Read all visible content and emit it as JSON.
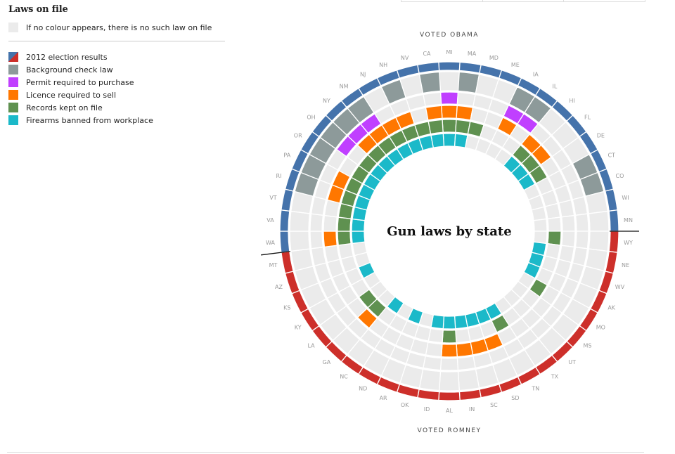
{
  "legend": {
    "title": "Laws on file",
    "no_law_note": "If no colour appears, there is no such law on file",
    "items": [
      {
        "label": "2012 election results",
        "color": "split"
      },
      {
        "label": "Background check law",
        "color": "#8d9a9a"
      },
      {
        "label": "Permit required to purchase",
        "color": "#c03fff"
      },
      {
        "label": "Licence required to sell",
        "color": "#ff7700"
      },
      {
        "label": "Records kept on file",
        "color": "#5f9150"
      },
      {
        "label": "Firearms banned from workplace",
        "color": "#1bb9c9"
      }
    ]
  },
  "colors": {
    "obama": "#4573ab",
    "romney": "#cd2f2a",
    "empty": "#ebebeb",
    "background_check": "#8d9a9a",
    "permit_to_purchase": "#c03fff",
    "licence_to_sell": "#ff7700",
    "records_kept": "#5f9150",
    "workplace_ban": "#1bb9c9"
  },
  "chart_data": {
    "type": "radial",
    "title": "Gun laws by state",
    "top_label": "VOTED OBAMA",
    "bottom_label": "VOTED ROMNEY",
    "rings": [
      "2012 election results",
      "Background check law",
      "Permit required to purchase",
      "Licence required to sell",
      "Records kept on file",
      "Firearms banned from workplace"
    ],
    "states": [
      {
        "name": "MI",
        "vote": "obama",
        "laws": {
          "permit": true,
          "licence": true,
          "records": true,
          "workplace": true
        }
      },
      {
        "name": "MA",
        "vote": "obama",
        "laws": {
          "background": true,
          "licence": true,
          "records": true,
          "workplace": true
        }
      },
      {
        "name": "MD",
        "vote": "obama",
        "laws": {
          "records": true
        }
      },
      {
        "name": "ME",
        "vote": "obama",
        "laws": {}
      },
      {
        "name": "IA",
        "vote": "obama",
        "laws": {
          "background": true,
          "permit": true,
          "licence": true
        }
      },
      {
        "name": "IL",
        "vote": "obama",
        "laws": {
          "background": true,
          "permit": true
        }
      },
      {
        "name": "HI",
        "vote": "obama",
        "laws": {
          "licence": true,
          "records": true,
          "workplace": true
        }
      },
      {
        "name": "FL",
        "vote": "obama",
        "laws": {
          "licence": true,
          "records": true,
          "workplace": true
        }
      },
      {
        "name": "DE",
        "vote": "obama",
        "laws": {
          "records": true,
          "workplace": true
        }
      },
      {
        "name": "CT",
        "vote": "obama",
        "laws": {
          "background": true
        }
      },
      {
        "name": "CO",
        "vote": "obama",
        "laws": {
          "background": true
        }
      },
      {
        "name": "WI",
        "vote": "obama",
        "laws": {}
      },
      {
        "name": "MN",
        "vote": "obama",
        "laws": {}
      },
      {
        "name": "WY",
        "vote": "romney",
        "laws": {
          "records": true
        }
      },
      {
        "name": "NE",
        "vote": "romney",
        "laws": {
          "workplace": true
        }
      },
      {
        "name": "WV",
        "vote": "romney",
        "laws": {
          "workplace": true
        }
      },
      {
        "name": "AK",
        "vote": "romney",
        "laws": {
          "workplace": true
        }
      },
      {
        "name": "MO",
        "vote": "romney",
        "laws": {
          "records": true
        }
      },
      {
        "name": "MS",
        "vote": "romney",
        "laws": {}
      },
      {
        "name": "UT",
        "vote": "romney",
        "laws": {}
      },
      {
        "name": "TX",
        "vote": "romney",
        "laws": {}
      },
      {
        "name": "TN",
        "vote": "romney",
        "laws": {
          "records": true,
          "workplace": true
        }
      },
      {
        "name": "SD",
        "vote": "romney",
        "laws": {
          "licence": true,
          "workplace": true
        }
      },
      {
        "name": "SC",
        "vote": "romney",
        "laws": {
          "licence": true,
          "workplace": true
        }
      },
      {
        "name": "IN",
        "vote": "romney",
        "laws": {
          "licence": true,
          "workplace": true
        }
      },
      {
        "name": "AL",
        "vote": "romney",
        "laws": {
          "licence": true,
          "records": true,
          "workplace": true
        }
      },
      {
        "name": "ID",
        "vote": "romney",
        "laws": {
          "workplace": true
        }
      },
      {
        "name": "OK",
        "vote": "romney",
        "laws": {}
      },
      {
        "name": "AR",
        "vote": "romney",
        "laws": {
          "workplace": true
        }
      },
      {
        "name": "ND",
        "vote": "romney",
        "laws": {}
      },
      {
        "name": "NC",
        "vote": "romney",
        "laws": {
          "workplace": true
        }
      },
      {
        "name": "GA",
        "vote": "romney",
        "laws": {
          "licence": true,
          "records": true
        }
      },
      {
        "name": "LA",
        "vote": "romney",
        "laws": {
          "records": true
        }
      },
      {
        "name": "KY",
        "vote": "romney",
        "laws": {}
      },
      {
        "name": "KS",
        "vote": "romney",
        "laws": {
          "workplace": true
        }
      },
      {
        "name": "AZ",
        "vote": "romney",
        "laws": {}
      },
      {
        "name": "MT",
        "vote": "romney",
        "laws": {}
      },
      {
        "name": "WA",
        "vote": "obama",
        "laws": {
          "licence": true,
          "records": true,
          "workplace": true
        }
      },
      {
        "name": "VA",
        "vote": "obama",
        "laws": {
          "records": true,
          "workplace": true
        }
      },
      {
        "name": "VT",
        "vote": "obama",
        "laws": {
          "records": true,
          "workplace": true
        }
      },
      {
        "name": "RI",
        "vote": "obama",
        "laws": {
          "background": true,
          "licence": true,
          "records": true,
          "workplace": true
        }
      },
      {
        "name": "PA",
        "vote": "obama",
        "laws": {
          "background": true,
          "licence": true,
          "records": true,
          "workplace": true
        }
      },
      {
        "name": "OR",
        "vote": "obama",
        "laws": {
          "background": true,
          "records": true,
          "workplace": true
        }
      },
      {
        "name": "OH",
        "vote": "obama",
        "laws": {
          "background": true,
          "permit": true,
          "records": true,
          "workplace": true
        }
      },
      {
        "name": "NY",
        "vote": "obama",
        "laws": {
          "background": true,
          "permit": true,
          "licence": true,
          "records": true,
          "workplace": true
        }
      },
      {
        "name": "NM",
        "vote": "obama",
        "laws": {
          "background": true,
          "permit": true,
          "licence": true,
          "records": true,
          "workplace": true
        }
      },
      {
        "name": "NJ",
        "vote": "obama",
        "laws": {
          "licence": true,
          "records": true,
          "workplace": true
        }
      },
      {
        "name": "NH",
        "vote": "obama",
        "laws": {
          "background": true,
          "licence": true,
          "records": true,
          "workplace": true
        }
      },
      {
        "name": "NV",
        "vote": "obama",
        "laws": {
          "records": true,
          "workplace": true
        }
      },
      {
        "name": "CA",
        "vote": "obama",
        "laws": {
          "background": true,
          "licence": true,
          "records": true,
          "workplace": true
        }
      }
    ]
  }
}
